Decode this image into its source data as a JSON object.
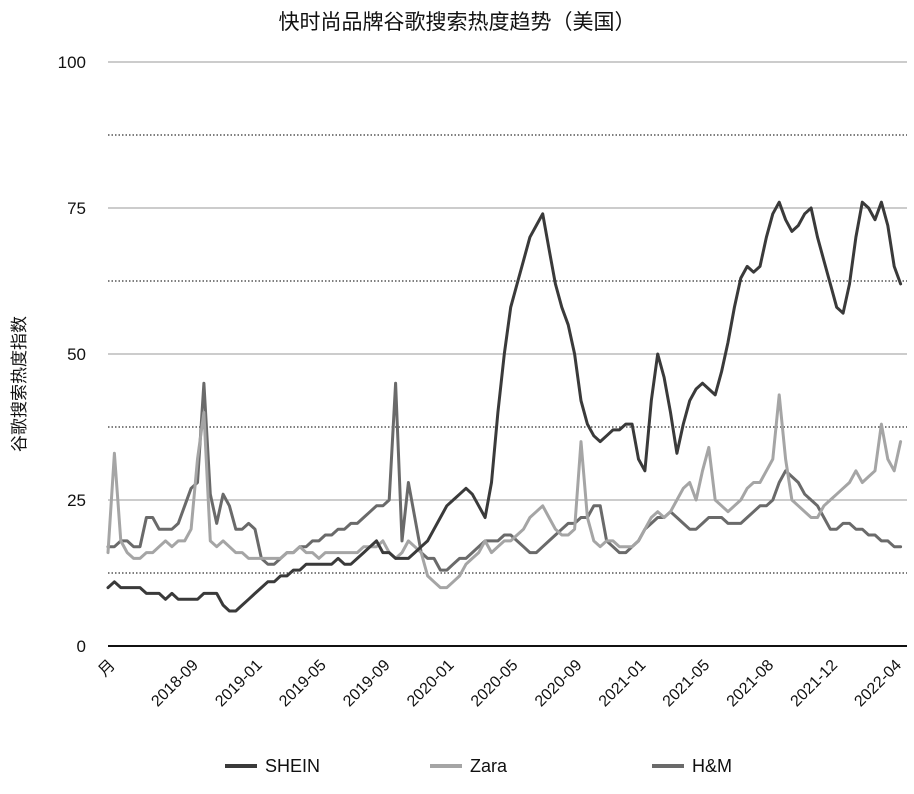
{
  "chart_data": {
    "type": "line",
    "title": "快时尚品牌谷歌搜索热度趋势（美国）",
    "xlabel": "",
    "ylabel": "谷歌搜索热度指数",
    "ylim": [
      0,
      100
    ],
    "y_ticks": [
      0,
      25,
      50,
      75,
      100
    ],
    "grid": true,
    "legend_position": "bottom",
    "x_tick_labels": [
      "月",
      "2018-09",
      "2019-01",
      "2019-05",
      "2019-09",
      "2020-01",
      "2020-05",
      "2020-09",
      "2021-01",
      "2021-05",
      "2021-08",
      "2021-12",
      "2022-04"
    ],
    "x_tick_positions": [
      0,
      13,
      23,
      33,
      43,
      53,
      63,
      73,
      83,
      93,
      103,
      113,
      123
    ],
    "x_max": 125,
    "series": [
      {
        "name": "SHEIN",
        "color": "#3a3a3a",
        "values": [
          10,
          11,
          10,
          10,
          10,
          10,
          9,
          9,
          9,
          8,
          9,
          8,
          8,
          8,
          8,
          9,
          9,
          9,
          7,
          6,
          6,
          7,
          8,
          9,
          10,
          11,
          11,
          12,
          12,
          13,
          13,
          14,
          14,
          14,
          14,
          14,
          15,
          14,
          14,
          15,
          16,
          17,
          18,
          16,
          16,
          15,
          15,
          15,
          16,
          17,
          18,
          20,
          22,
          24,
          25,
          26,
          27,
          26,
          24,
          22,
          28,
          40,
          50,
          58,
          62,
          66,
          70,
          72,
          74,
          68,
          62,
          58,
          55,
          50,
          42,
          38,
          36,
          35,
          36,
          37,
          37,
          38,
          38,
          32,
          30,
          42,
          50,
          46,
          40,
          33,
          38,
          42,
          44,
          45,
          44,
          43,
          47,
          52,
          58,
          63,
          65,
          64,
          65,
          70,
          74,
          76,
          73,
          71,
          72,
          74,
          75,
          70,
          66,
          62,
          58,
          57,
          62,
          70,
          76,
          75,
          73,
          76,
          72,
          65,
          62
        ]
      },
      {
        "name": "Zara",
        "color": "#a5a5a5",
        "values": [
          16,
          33,
          18,
          16,
          15,
          15,
          16,
          16,
          17,
          18,
          17,
          18,
          18,
          20,
          32,
          40,
          18,
          17,
          18,
          17,
          16,
          16,
          15,
          15,
          15,
          15,
          15,
          15,
          16,
          16,
          17,
          16,
          16,
          15,
          16,
          16,
          16,
          16,
          16,
          16,
          17,
          17,
          17,
          18,
          16,
          15,
          16,
          18,
          17,
          16,
          12,
          11,
          10,
          10,
          11,
          12,
          14,
          15,
          16,
          18,
          16,
          17,
          18,
          18,
          19,
          20,
          22,
          23,
          24,
          22,
          20,
          19,
          19,
          20,
          35,
          22,
          18,
          17,
          18,
          18,
          17,
          17,
          17,
          18,
          20,
          22,
          23,
          22,
          23,
          25,
          27,
          28,
          25,
          30,
          34,
          25,
          24,
          23,
          24,
          25,
          27,
          28,
          28,
          30,
          32,
          43,
          32,
          25,
          24,
          23,
          22,
          22,
          24,
          25,
          26,
          27,
          28,
          30,
          28,
          29,
          30,
          38,
          32,
          30,
          35
        ]
      },
      {
        "name": "H&M",
        "color": "#6a6a6a",
        "values": [
          17,
          17,
          18,
          18,
          17,
          17,
          22,
          22,
          20,
          20,
          20,
          21,
          24,
          27,
          28,
          45,
          26,
          21,
          26,
          24,
          20,
          20,
          21,
          20,
          15,
          14,
          14,
          15,
          16,
          16,
          17,
          17,
          18,
          18,
          19,
          19,
          20,
          20,
          21,
          21,
          22,
          23,
          24,
          24,
          25,
          45,
          18,
          28,
          22,
          16,
          15,
          15,
          13,
          13,
          14,
          15,
          15,
          16,
          17,
          18,
          18,
          18,
          19,
          19,
          18,
          17,
          16,
          16,
          17,
          18,
          19,
          20,
          21,
          21,
          22,
          22,
          24,
          24,
          18,
          17,
          16,
          16,
          17,
          18,
          20,
          21,
          22,
          22,
          23,
          22,
          21,
          20,
          20,
          21,
          22,
          22,
          22,
          21,
          21,
          21,
          22,
          23,
          24,
          24,
          25,
          28,
          30,
          29,
          28,
          26,
          25,
          24,
          22,
          20,
          20,
          21,
          21,
          20,
          20,
          19,
          19,
          18,
          18,
          17,
          17
        ]
      }
    ]
  }
}
